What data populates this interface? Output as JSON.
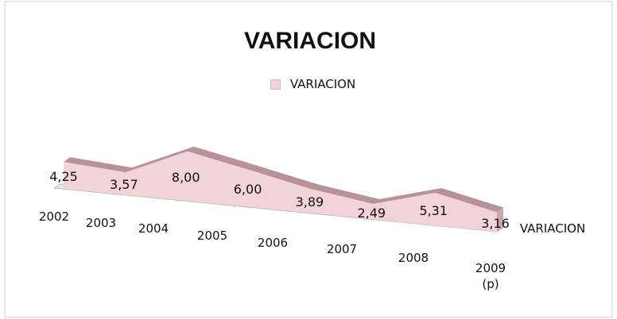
{
  "chart_data": {
    "type": "area3d",
    "title": "VARIACION",
    "categories": [
      "2002",
      "2003",
      "2004",
      "2005",
      "2006",
      "2007",
      "2008",
      "2009\n(p)"
    ],
    "series": [
      {
        "name": "VARIACION",
        "color": "#f2d3d7",
        "values": [
          4.25,
          3.57,
          8.0,
          6.0,
          3.89,
          2.49,
          5.31,
          3.16
        ],
        "value_labels": [
          "4,25",
          "3,57",
          "8,00",
          "6,00",
          "3,89",
          "2,49",
          "5,31",
          "3,16"
        ]
      }
    ],
    "legend": "top"
  }
}
